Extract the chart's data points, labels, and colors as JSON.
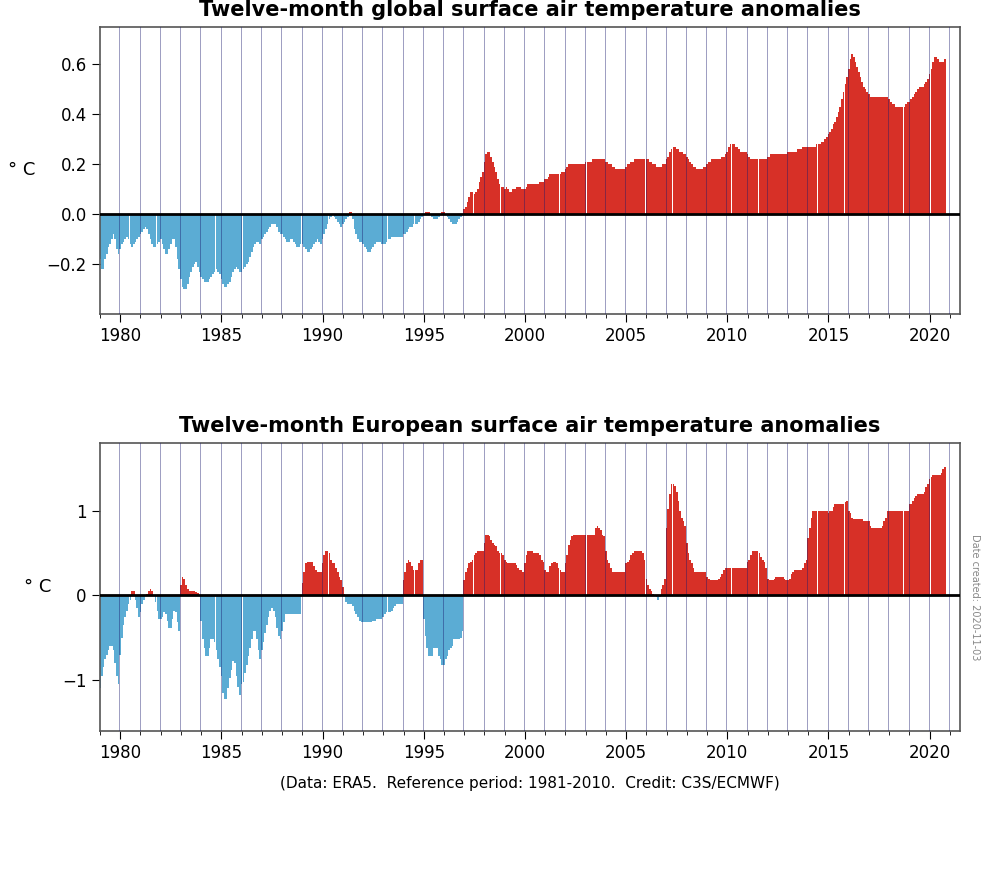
{
  "title1": "Twelve-month global surface air temperature anomalies",
  "title2": "Twelve-month European surface air temperature anomalies",
  "ylabel": "° C",
  "xlabel_note": "(Data: ERA5.  Reference period: 1981-2010.  Credit: C3S/ECMWF)",
  "red_color": "#d73027",
  "blue_color": "#5bacd4",
  "bar_edge_color": "#1a1a6e",
  "bg_color": "#ffffff",
  "title_fontsize": 15,
  "label_fontsize": 13,
  "tick_fontsize": 12,
  "note_fontsize": 11,
  "global_ylim": [
    -0.4,
    0.75
  ],
  "europe_ylim": [
    -1.6,
    1.8
  ],
  "global_yticks": [
    -0.2,
    0.0,
    0.2,
    0.4,
    0.6
  ],
  "europe_yticks": [
    -1.0,
    0.0,
    1.0
  ],
  "xlim_start": 1979.0,
  "xlim_end": 2021.5,
  "xtick_positions": [
    1980,
    1985,
    1990,
    1995,
    2000,
    2005,
    2010,
    2015,
    2020
  ],
  "date_created": "Date created: 2020-11-03"
}
